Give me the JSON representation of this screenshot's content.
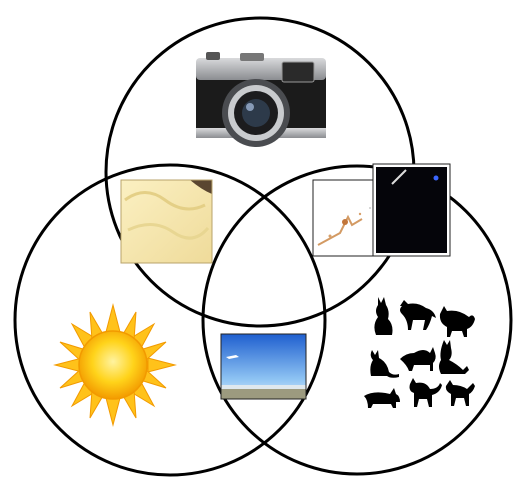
{
  "diagram": {
    "type": "venn",
    "circles": [
      {
        "id": "top",
        "content": "camera-image"
      },
      {
        "id": "left",
        "content": "sun-image"
      },
      {
        "id": "right",
        "content": "cat-silhouettes-image"
      }
    ],
    "intersections": [
      {
        "sets": [
          "top",
          "left"
        ],
        "content": "butter-texture-image"
      },
      {
        "sets": [
          "top",
          "right"
        ],
        "content": [
          "splash-on-white-image",
          "dark-night-image"
        ]
      },
      {
        "sets": [
          "left",
          "right"
        ],
        "content": "blue-sky-airplane-image"
      }
    ],
    "colors": {
      "outline": "#000000",
      "background": "#ffffff",
      "sun_core": "#f7b400",
      "sun_rays": "#ffce2e",
      "sky_blue": "#2f6fd6",
      "cat": "#000000"
    }
  }
}
